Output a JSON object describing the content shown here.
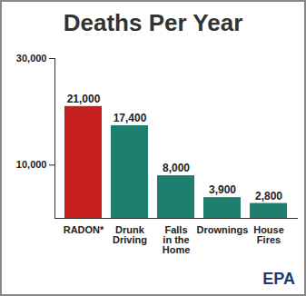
{
  "chart_data": {
    "type": "bar",
    "title": "Deaths Per Year",
    "categories": [
      "RADON*",
      "Drunk Driving",
      "Falls in the Home",
      "Drownings",
      "House Fires"
    ],
    "values": [
      21000,
      17400,
      8000,
      3900,
      2800
    ],
    "value_labels": [
      "21,000",
      "17,400",
      "8,000",
      "3,900",
      "2,800"
    ],
    "colors": [
      "#c41e1e",
      "#1f7f6f",
      "#1f7f6f",
      "#1f7f6f",
      "#1f7f6f"
    ],
    "ylim": [
      0,
      30000
    ],
    "yticks": [
      {
        "value": 10000,
        "label": "10,000"
      },
      {
        "value": 30000,
        "label": "30,000"
      }
    ],
    "grid": false,
    "data_labels": true,
    "annotations": [
      "EPA"
    ]
  }
}
